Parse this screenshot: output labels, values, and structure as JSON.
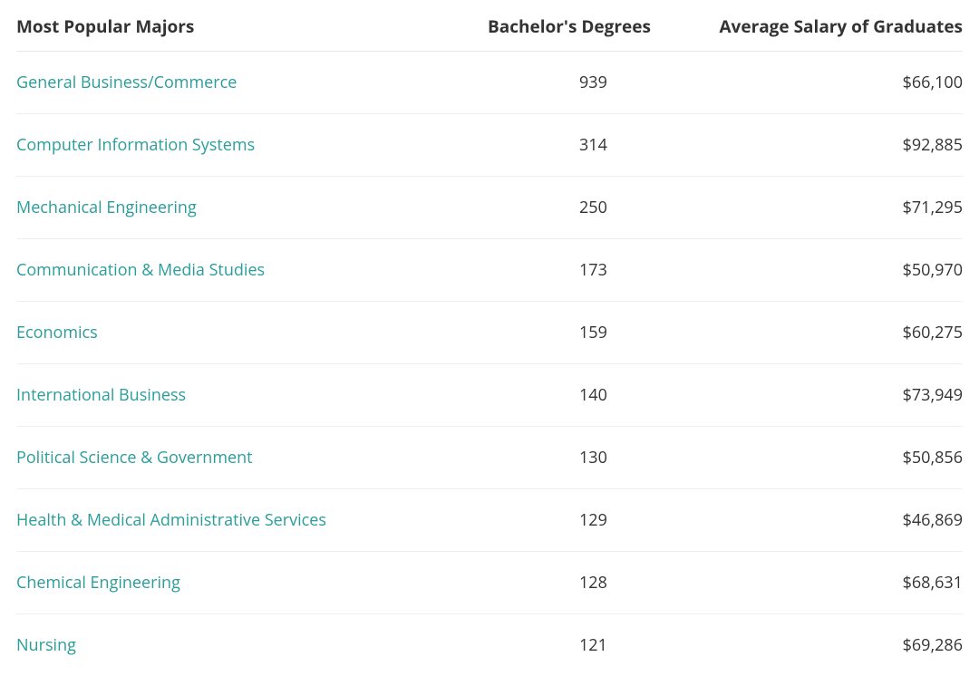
{
  "table": {
    "type": "table",
    "columns": [
      {
        "label": "Most Popular Majors",
        "align": "left"
      },
      {
        "label": "Bachelor's Degrees",
        "align": "right"
      },
      {
        "label": "Average Salary of Graduates",
        "align": "right"
      }
    ],
    "rows": [
      {
        "major": "General Business/Commerce",
        "degrees": "939",
        "salary": "$66,100"
      },
      {
        "major": "Computer Information Systems",
        "degrees": "314",
        "salary": "$92,885"
      },
      {
        "major": "Mechanical Engineering",
        "degrees": "250",
        "salary": "$71,295"
      },
      {
        "major": "Communication & Media Studies",
        "degrees": "173",
        "salary": "$50,970"
      },
      {
        "major": "Economics",
        "degrees": "159",
        "salary": "$60,275"
      },
      {
        "major": "International Business",
        "degrees": "140",
        "salary": "$73,949"
      },
      {
        "major": "Political Science & Government",
        "degrees": "130",
        "salary": "$50,856"
      },
      {
        "major": "Health & Medical Administrative Services",
        "degrees": "129",
        "salary": "$46,869"
      },
      {
        "major": "Chemical Engineering",
        "degrees": "128",
        "salary": "$68,631"
      },
      {
        "major": "Nursing",
        "degrees": "121",
        "salary": "$69,286"
      }
    ],
    "link_color": "#2a9d9b",
    "header_text_color": "#333333",
    "body_text_color": "#333333",
    "border_color": "#eeeeee",
    "background_color": "#ffffff",
    "header_fontsize": 19,
    "body_fontsize": 18
  }
}
